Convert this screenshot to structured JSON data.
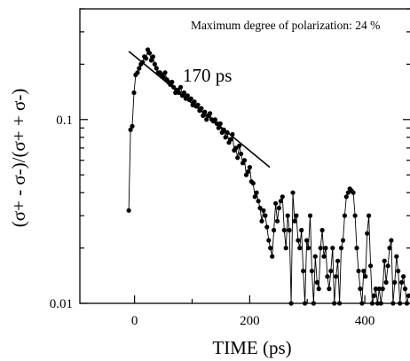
{
  "chart_data": {
    "type": "scatter",
    "yscale": "log",
    "xlim": [
      -95,
      480
    ],
    "ylim": [
      0.01,
      0.4
    ],
    "xlabel": "TIME (ps)",
    "ylabel": "(σ+ - σ-)/(σ+ + σ-)",
    "x_ticks": [
      0,
      200,
      400
    ],
    "x_tick_labels": [
      "0",
      "200",
      "400"
    ],
    "y_ticks": [
      0.01,
      0.1
    ],
    "y_tick_labels": [
      "0.01",
      "0.1"
    ],
    "annotation": "Maximum degree of polarization: 24 %",
    "fit": {
      "label": "170 ps",
      "x": [
        -10,
        235
      ],
      "y": [
        0.235,
        0.055
      ]
    },
    "series": [
      {
        "x": [
          -10,
          -7,
          -4,
          -1,
          2,
          5,
          8,
          11,
          14,
          17,
          20,
          23,
          26,
          29,
          32,
          35,
          38,
          41,
          44,
          47,
          50,
          53,
          56,
          59,
          62,
          65,
          68,
          71,
          74,
          77,
          80,
          83,
          86,
          89,
          92,
          95,
          98,
          101,
          104,
          107,
          110,
          113,
          116,
          119,
          122,
          125,
          128,
          131,
          134,
          137,
          140,
          143,
          146,
          149,
          152,
          155,
          158,
          161,
          164,
          167,
          170,
          173,
          176,
          179,
          182,
          185,
          188,
          191,
          194,
          197,
          200,
          203,
          206,
          209,
          212,
          215,
          218,
          221,
          224,
          227,
          230,
          233,
          236,
          239,
          242,
          245,
          248,
          251,
          254,
          257,
          260,
          263,
          266,
          269,
          272,
          275,
          278,
          281,
          284,
          287,
          290,
          293,
          296,
          299,
          302,
          305,
          308,
          311,
          314,
          317,
          320,
          323,
          326,
          329,
          332,
          335,
          338,
          341,
          344,
          347,
          350,
          353,
          356,
          359,
          362,
          365,
          368,
          371,
          374,
          377,
          380,
          383,
          386,
          389,
          392,
          395,
          398,
          401,
          404,
          407,
          410,
          413,
          416,
          419,
          422,
          425,
          428,
          431,
          434,
          437,
          440,
          443,
          446,
          449,
          452,
          455,
          458,
          461,
          464,
          467,
          470,
          473,
          476
        ],
        "y": [
          0.032,
          0.088,
          0.092,
          0.14,
          0.175,
          0.18,
          0.19,
          0.2,
          0.205,
          0.22,
          0.215,
          0.24,
          0.23,
          0.21,
          0.22,
          0.2,
          0.19,
          0.18,
          0.18,
          0.175,
          0.17,
          0.18,
          0.165,
          0.16,
          0.155,
          0.16,
          0.15,
          0.14,
          0.145,
          0.14,
          0.15,
          0.135,
          0.14,
          0.13,
          0.135,
          0.128,
          0.13,
          0.12,
          0.125,
          0.118,
          0.12,
          0.112,
          0.115,
          0.105,
          0.11,
          0.1,
          0.105,
          0.108,
          0.1,
          0.098,
          0.1,
          0.095,
          0.09,
          0.095,
          0.085,
          0.088,
          0.08,
          0.085,
          0.075,
          0.078,
          0.083,
          0.068,
          0.07,
          0.062,
          0.072,
          0.065,
          0.058,
          0.06,
          0.05,
          0.052,
          0.055,
          0.046,
          0.045,
          0.038,
          0.04,
          0.036,
          0.033,
          0.028,
          0.032,
          0.03,
          0.026,
          0.022,
          0.02,
          0.018,
          0.025,
          0.035,
          0.028,
          0.033,
          0.036,
          0.038,
          0.025,
          0.02,
          0.03,
          0.025,
          0.01,
          0.04,
          0.028,
          0.03,
          0.022,
          0.02,
          0.025,
          0.015,
          0.01,
          0.022,
          0.02,
          0.03,
          0.015,
          0.01,
          0.018,
          0.013,
          0.012,
          0.02,
          0.025,
          0.018,
          0.02,
          0.014,
          0.012,
          0.015,
          0.02,
          0.01,
          0.014,
          0.017,
          0.01,
          0.02,
          0.022,
          0.03,
          0.038,
          0.04,
          0.042,
          0.041,
          0.04,
          0.03,
          0.02,
          0.015,
          0.012,
          0.01,
          0.015,
          0.014,
          0.024,
          0.03,
          0.016,
          0.01,
          0.011,
          0.012,
          0.01,
          0.012,
          0.01,
          0.012,
          0.017,
          0.013,
          0.016,
          0.02,
          0.022,
          0.01,
          0.013,
          0.018,
          0.015,
          0.01,
          0.013,
          0.014,
          0.012,
          0.01,
          0.011
        ]
      }
    ]
  }
}
